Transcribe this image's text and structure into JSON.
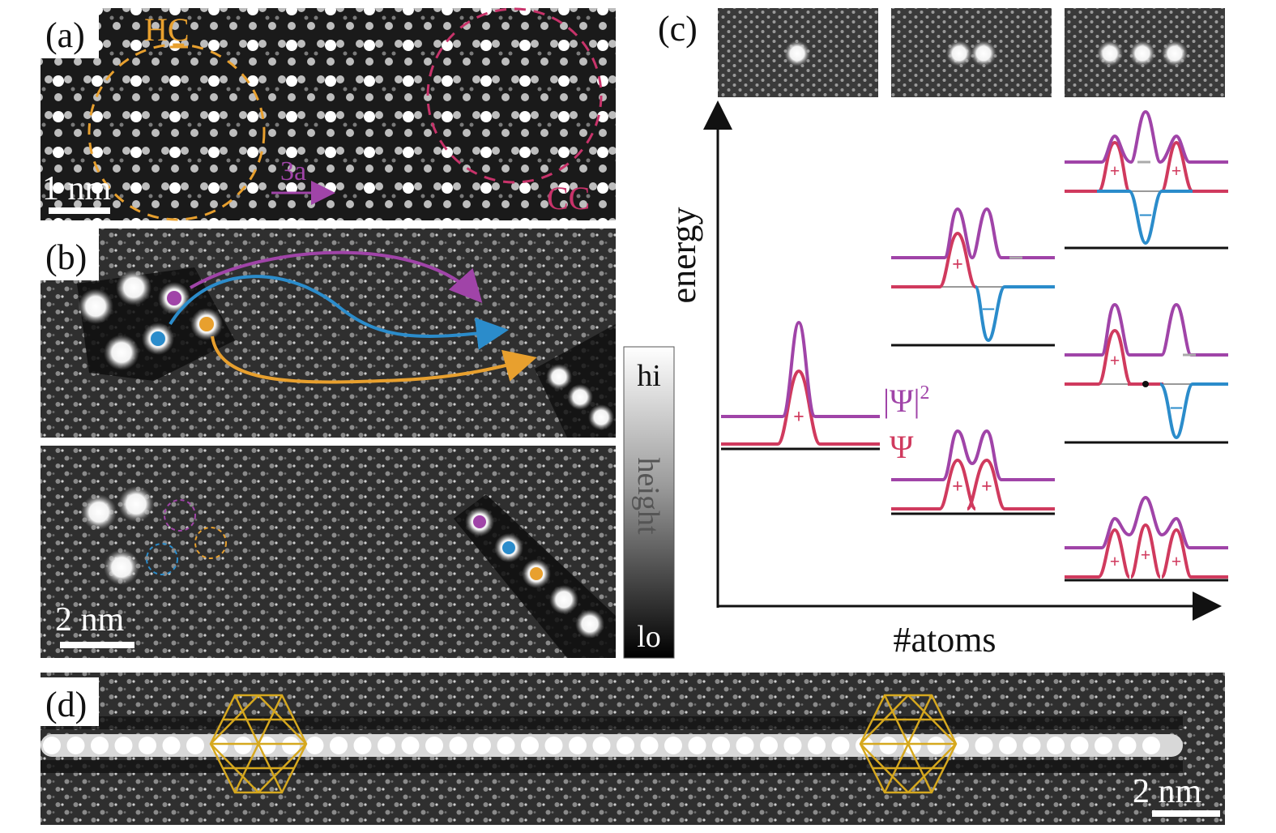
{
  "panels": {
    "a": {
      "label": "(a)",
      "scale": "1 nm",
      "hc": "HC",
      "cc": "CC",
      "step": "3a"
    },
    "b": {
      "label": "(b)",
      "scale": "2 nm"
    },
    "c": {
      "label": "(c)",
      "yaxis": "energy",
      "xaxis": "#atoms",
      "psi_sq": "|Ψ|",
      "psi_sq_exp": "2",
      "psi": "Ψ"
    },
    "d": {
      "label": "(d)",
      "scale": "2 nm"
    }
  },
  "colorbar": {
    "hi": "hi",
    "mid": "height",
    "lo": "lo"
  },
  "colors": {
    "orange": "#e8a02e",
    "magenta": "#c8336a",
    "purple": "#a044a8",
    "blue": "#2b8ccb",
    "gold": "#d6a81e",
    "gray": "#8c8c8c"
  }
}
